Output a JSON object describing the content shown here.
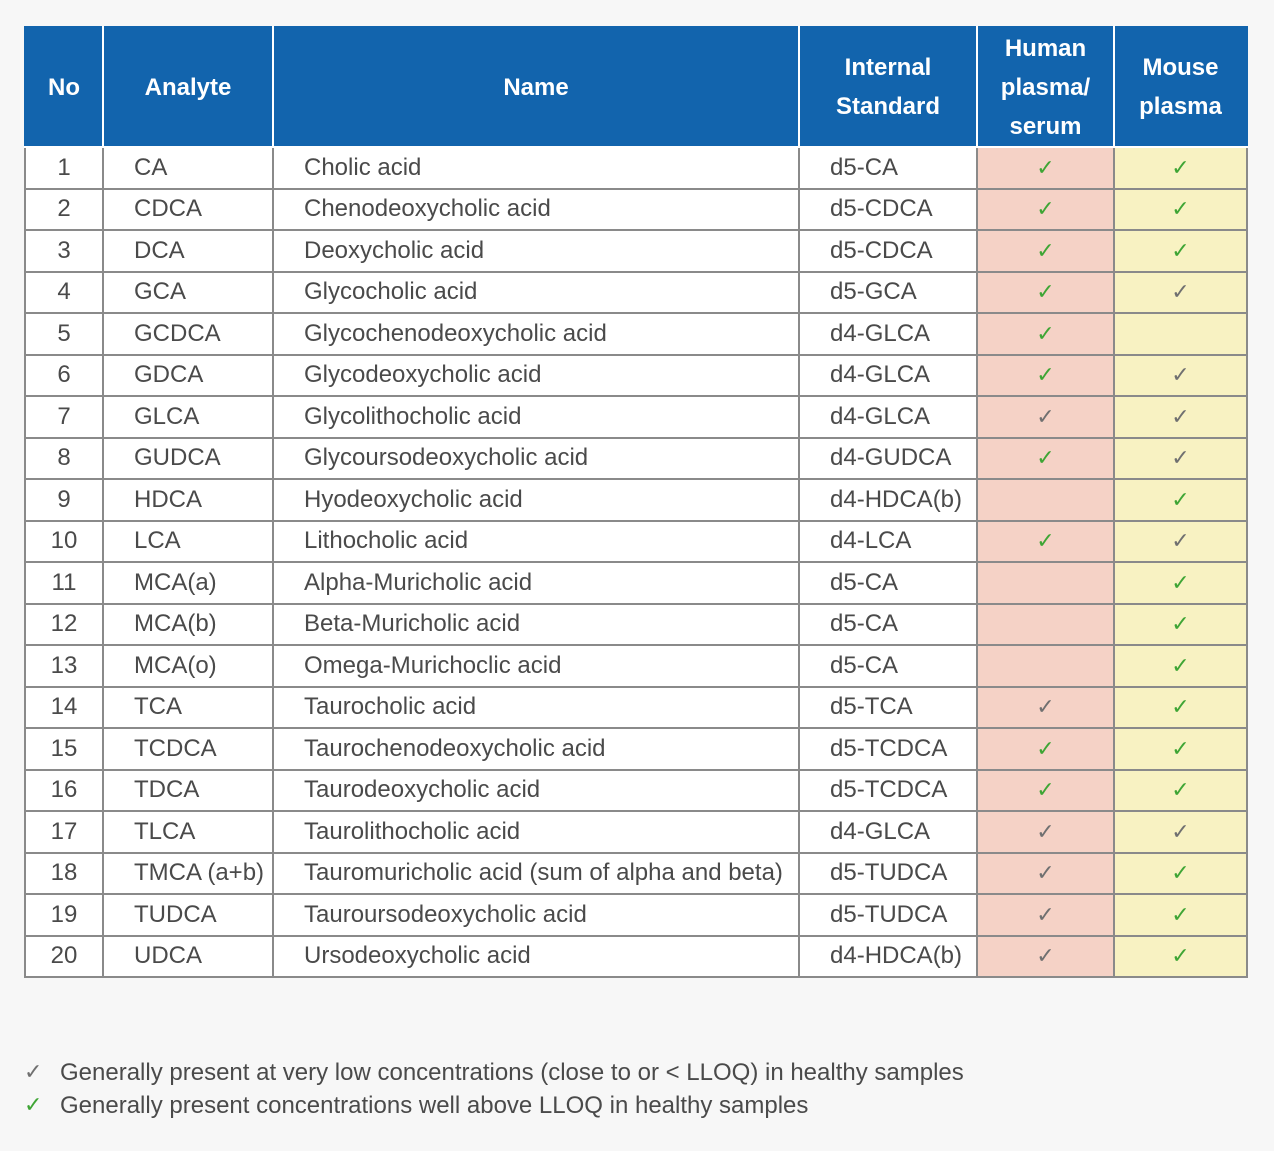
{
  "headers": {
    "no": "No",
    "analyte": "Analyte",
    "name": "Name",
    "internal_standard": [
      "Internal",
      "Standard"
    ],
    "human": [
      "Human",
      "plasma/",
      "serum"
    ],
    "mouse": [
      "Mouse",
      "plasma"
    ]
  },
  "rows": [
    {
      "no": "1",
      "analyte": "CA",
      "name": "Cholic acid",
      "is": "d5-CA",
      "human": "high",
      "mouse": "high"
    },
    {
      "no": "2",
      "analyte": "CDCA",
      "name": "Chenodeoxycholic acid",
      "is": "d5-CDCA",
      "human": "high",
      "mouse": "high"
    },
    {
      "no": "3",
      "analyte": "DCA",
      "name": "Deoxycholic acid",
      "is": "d5-CDCA",
      "human": "high",
      "mouse": "high"
    },
    {
      "no": "4",
      "analyte": "GCA",
      "name": "Glycocholic acid",
      "is": "d5-GCA",
      "human": "high",
      "mouse": "low"
    },
    {
      "no": "5",
      "analyte": "GCDCA",
      "name": "Glycochenodeoxycholic acid",
      "is": "d4-GLCA",
      "human": "high",
      "mouse": ""
    },
    {
      "no": "6",
      "analyte": "GDCA",
      "name": "Glycodeoxycholic acid",
      "is": "d4-GLCA",
      "human": "high",
      "mouse": "low"
    },
    {
      "no": "7",
      "analyte": "GLCA",
      "name": "Glycolithocholic acid",
      "is": "d4-GLCA",
      "human": "low",
      "mouse": "low"
    },
    {
      "no": "8",
      "analyte": "GUDCA",
      "name": "Glycoursodeoxycholic acid",
      "is": "d4-GUDCA",
      "human": "high",
      "mouse": "low"
    },
    {
      "no": "9",
      "analyte": "HDCA",
      "name": "Hyodeoxycholic acid",
      "is": "d4-HDCA(b)",
      "human": "",
      "mouse": "high"
    },
    {
      "no": "10",
      "analyte": "LCA",
      "name": "Lithocholic acid",
      "is": "d4-LCA",
      "human": "high",
      "mouse": "low"
    },
    {
      "no": "11",
      "analyte": "MCA(a)",
      "name": "Alpha-Muricholic acid",
      "is": "d5-CA",
      "human": "",
      "mouse": "high"
    },
    {
      "no": "12",
      "analyte": "MCA(b)",
      "name": "Beta-Muricholic acid",
      "is": "d5-CA",
      "human": "",
      "mouse": "high"
    },
    {
      "no": "13",
      "analyte": "MCA(o)",
      "name": "Omega-Murichoclic acid",
      "is": "d5-CA",
      "human": "",
      "mouse": "high"
    },
    {
      "no": "14",
      "analyte": "TCA",
      "name": "Taurocholic acid",
      "is": "d5-TCA",
      "human": "low",
      "mouse": "high"
    },
    {
      "no": "15",
      "analyte": "TCDCA",
      "name": "Taurochenodeoxycholic acid",
      "is": "d5-TCDCA",
      "human": "high",
      "mouse": "high"
    },
    {
      "no": "16",
      "analyte": "TDCA",
      "name": "Taurodeoxycholic acid",
      "is": "d5-TCDCA",
      "human": "high",
      "mouse": "high"
    },
    {
      "no": "17",
      "analyte": "TLCA",
      "name": "Taurolithocholic acid",
      "is": "d4-GLCA",
      "human": "low",
      "mouse": "low"
    },
    {
      "no": "18",
      "analyte": "TMCA (a+b)",
      "name": "Tauromuricholic acid (sum of alpha and beta)",
      "is": "d5-TUDCA",
      "human": "low",
      "mouse": "high"
    },
    {
      "no": "19",
      "analyte": "TUDCA",
      "name": "Tauroursodeoxycholic acid",
      "is": "d5-TUDCA",
      "human": "low",
      "mouse": "high"
    },
    {
      "no": "20",
      "analyte": "UDCA",
      "name": "Ursodeoxycholic acid",
      "is": "d4-HDCA(b)",
      "human": "low",
      "mouse": "high"
    }
  ],
  "check_glyph": "✓",
  "colors": {
    "header_blue": "#1264ad",
    "human_fill": "#f5d2c6",
    "mouse_fill": "#f8f2c2",
    "check_high": "#3fa535",
    "check_low": "#707070"
  },
  "legend": [
    {
      "level": "low",
      "text": "Generally present at very low concentrations (close to or < LLOQ) in healthy samples"
    },
    {
      "level": "high",
      "text": "Generally present concentrations well above LLOQ in healthy samples"
    }
  ]
}
